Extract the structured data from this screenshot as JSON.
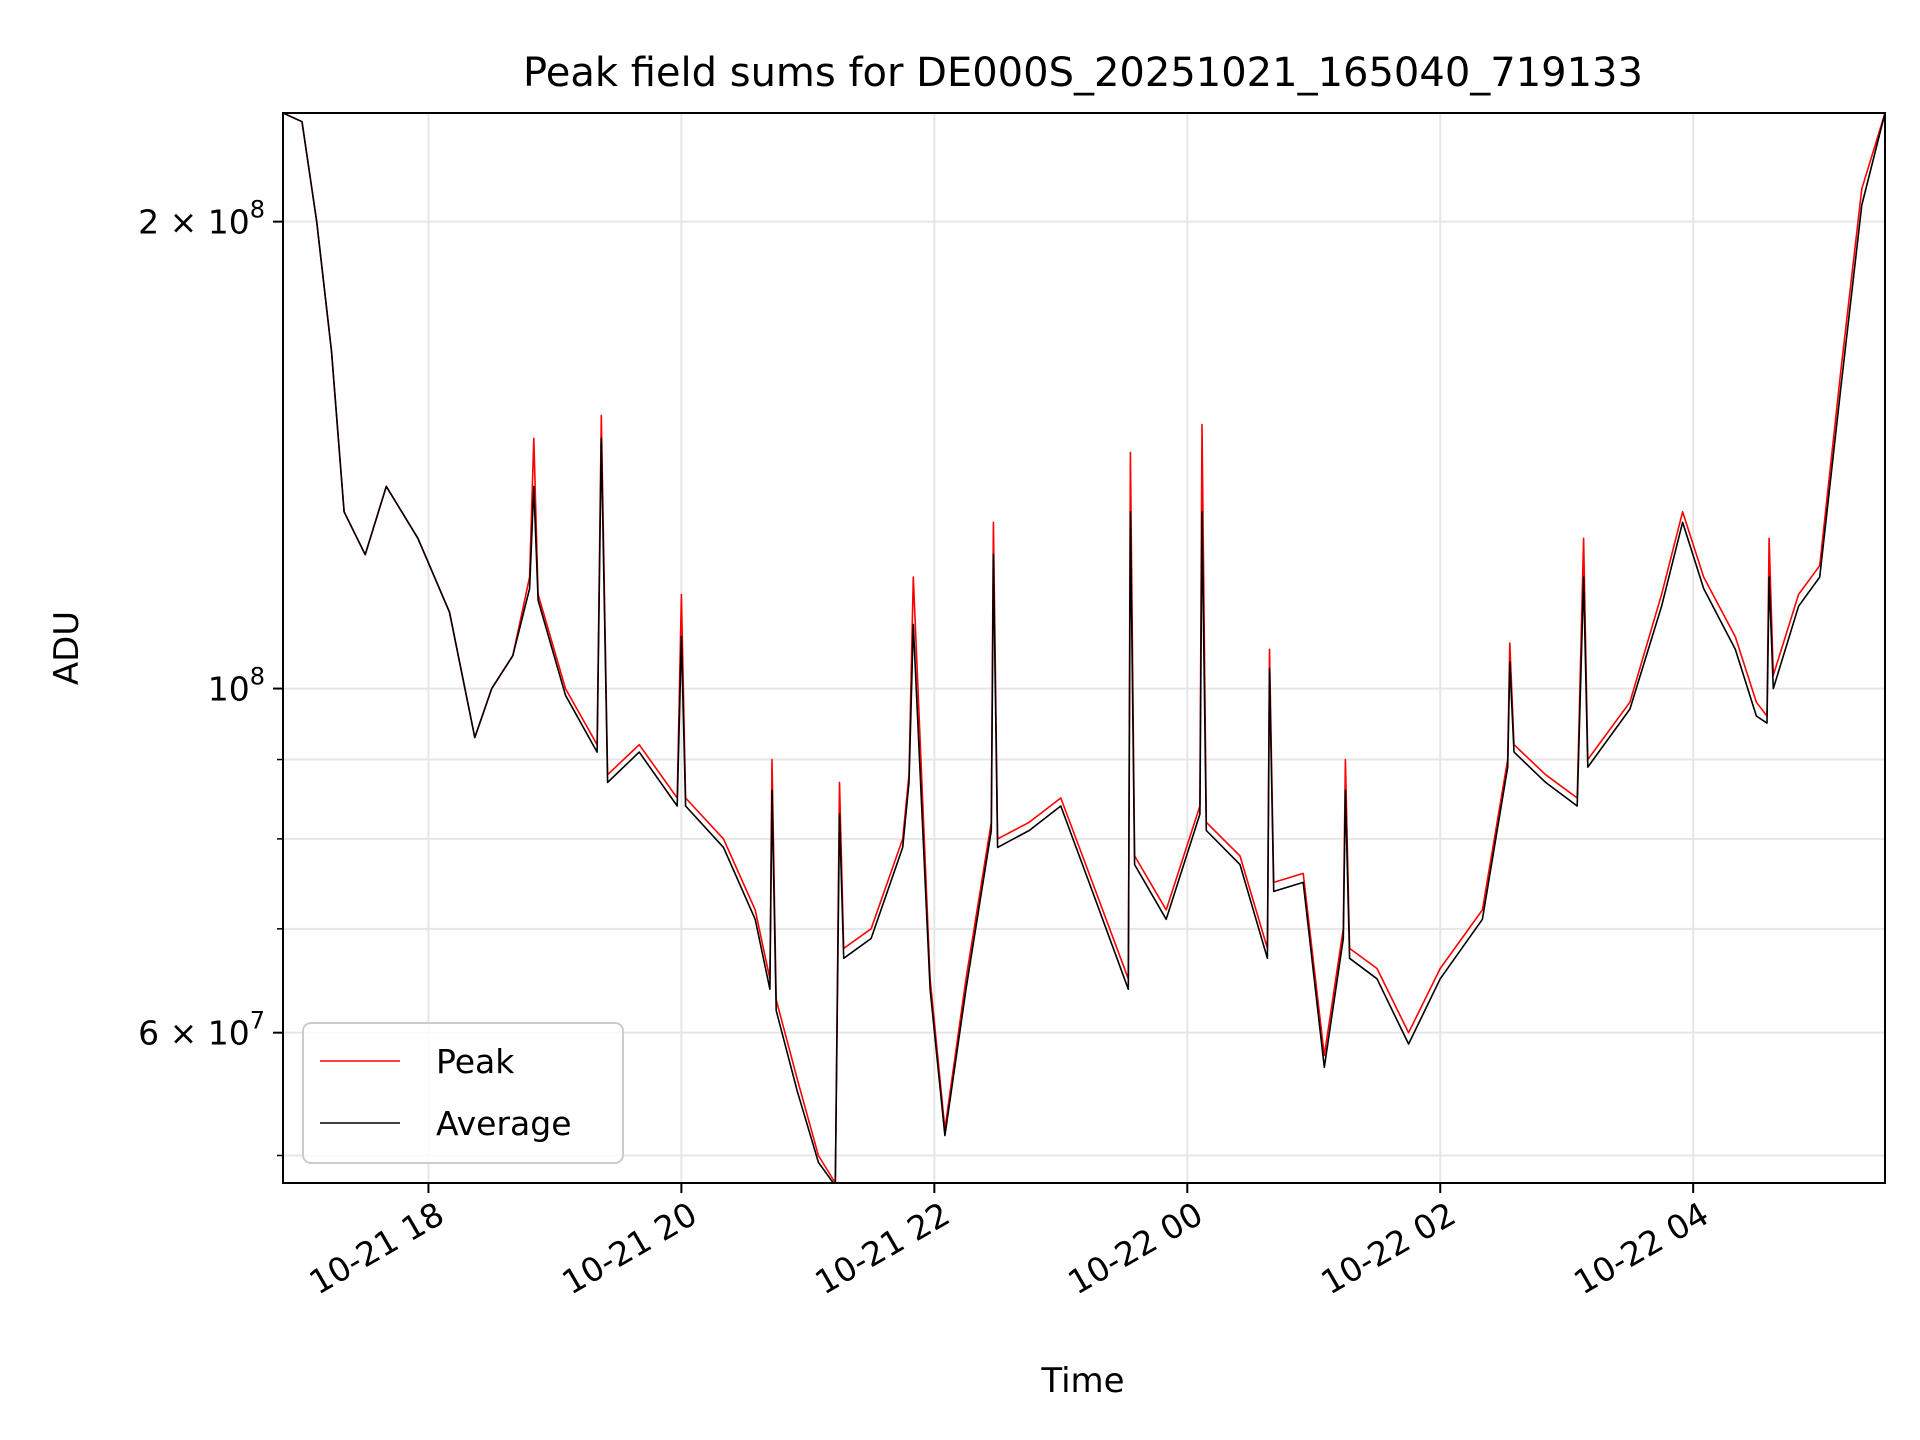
{
  "chart_data": {
    "type": "line",
    "title": "Peak field sums for DE000S_20251021_165040_719133",
    "xlabel": "Time",
    "ylabel": "ADU",
    "y_scale": "log",
    "ylim": [
      48000000,
      235000000
    ],
    "xlim": [
      "2025-10-21 16:51",
      "2025-10-22 05:31"
    ],
    "grid": true,
    "legend_position": "lower-left",
    "x_ticks": [
      {
        "t": "2025-10-21 18:00",
        "label": "10-21 18"
      },
      {
        "t": "2025-10-21 20:00",
        "label": "10-21 20"
      },
      {
        "t": "2025-10-21 22:00",
        "label": "10-21 22"
      },
      {
        "t": "2025-10-22 00:00",
        "label": "10-22 00"
      },
      {
        "t": "2025-10-22 02:00",
        "label": "10-22 02"
      },
      {
        "t": "2025-10-22 04:00",
        "label": "10-22 04"
      }
    ],
    "y_major_ticks": [
      {
        "value": 60000000,
        "mantissa": "6",
        "exponent": "7"
      },
      {
        "value": 100000000,
        "mantissa": "",
        "exponent": "8"
      },
      {
        "value": 200000000,
        "mantissa": "2",
        "exponent": "8"
      }
    ],
    "y_minor_ticks": [
      50000000,
      70000000,
      80000000,
      90000000
    ],
    "series": [
      {
        "name": "Peak",
        "color": "#ff0000",
        "x": [
          "2025-10-21 16:51",
          "2025-10-21 17:00",
          "2025-10-21 17:07",
          "2025-10-21 17:14",
          "2025-10-21 17:20",
          "2025-10-21 17:30",
          "2025-10-21 17:40",
          "2025-10-21 17:55",
          "2025-10-21 18:10",
          "2025-10-21 18:22",
          "2025-10-21 18:30",
          "2025-10-21 18:40",
          "2025-10-21 18:48",
          "2025-10-21 18:50",
          "2025-10-21 18:52",
          "2025-10-21 19:05",
          "2025-10-21 19:20",
          "2025-10-21 19:22",
          "2025-10-21 19:25",
          "2025-10-21 19:40",
          "2025-10-21 19:58",
          "2025-10-21 20:00",
          "2025-10-21 20:02",
          "2025-10-21 20:20",
          "2025-10-21 20:35",
          "2025-10-21 20:42",
          "2025-10-21 20:43",
          "2025-10-21 20:45",
          "2025-10-21 20:55",
          "2025-10-21 21:05",
          "2025-10-21 21:13",
          "2025-10-21 21:15",
          "2025-10-21 21:17",
          "2025-10-21 21:30",
          "2025-10-21 21:45",
          "2025-10-21 21:48",
          "2025-10-21 21:50",
          "2025-10-21 21:58",
          "2025-10-21 22:05",
          "2025-10-21 22:15",
          "2025-10-21 22:27",
          "2025-10-21 22:28",
          "2025-10-21 22:30",
          "2025-10-21 22:45",
          "2025-10-21 23:00",
          "2025-10-21 23:15",
          "2025-10-21 23:32",
          "2025-10-21 23:33",
          "2025-10-21 23:35",
          "2025-10-21 23:50",
          "2025-10-22 00:06",
          "2025-10-22 00:07",
          "2025-10-22 00:09",
          "2025-10-22 00:25",
          "2025-10-22 00:38",
          "2025-10-22 00:39",
          "2025-10-22 00:41",
          "2025-10-22 00:55",
          "2025-10-22 01:05",
          "2025-10-22 01:14",
          "2025-10-22 01:15",
          "2025-10-22 01:17",
          "2025-10-22 01:30",
          "2025-10-22 01:45",
          "2025-10-22 02:00",
          "2025-10-22 02:20",
          "2025-10-22 02:32",
          "2025-10-22 02:33",
          "2025-10-22 02:35",
          "2025-10-22 02:50",
          "2025-10-22 03:05",
          "2025-10-22 03:08",
          "2025-10-22 03:10",
          "2025-10-22 03:30",
          "2025-10-22 03:45",
          "2025-10-22 03:55",
          "2025-10-22 04:05",
          "2025-10-22 04:20",
          "2025-10-22 04:30",
          "2025-10-22 04:35",
          "2025-10-22 04:36",
          "2025-10-22 04:38",
          "2025-10-22 04:50",
          "2025-10-22 05:00",
          "2025-10-22 05:10",
          "2025-10-22 05:20",
          "2025-10-22 05:31"
        ],
        "values": [
          235000000,
          232000000,
          200000000,
          165000000,
          130000000,
          122000000,
          135000000,
          125000000,
          112000000,
          93000000,
          100000000,
          105000000,
          118000000,
          145000000,
          115000000,
          100000000,
          92000000,
          150000000,
          88000000,
          92000000,
          85000000,
          115000000,
          85000000,
          80000000,
          72000000,
          65000000,
          90000000,
          63000000,
          56000000,
          50000000,
          48000000,
          87000000,
          68000000,
          70000000,
          80000000,
          88000000,
          118000000,
          65000000,
          52000000,
          65000000,
          82000000,
          128000000,
          80000000,
          82000000,
          85000000,
          75000000,
          65000000,
          142000000,
          78000000,
          72000000,
          84000000,
          148000000,
          82000000,
          78000000,
          68000000,
          106000000,
          75000000,
          76000000,
          58000000,
          70000000,
          90000000,
          68000000,
          66000000,
          60000000,
          66000000,
          72000000,
          90000000,
          107000000,
          92000000,
          88000000,
          85000000,
          125000000,
          90000000,
          98000000,
          115000000,
          130000000,
          118000000,
          108000000,
          98000000,
          96000000,
          125000000,
          102000000,
          115000000,
          120000000,
          160000000,
          210000000,
          235000000
        ]
      },
      {
        "name": "Average",
        "color": "#000000",
        "x": [
          "2025-10-21 16:51",
          "2025-10-21 17:00",
          "2025-10-21 17:07",
          "2025-10-21 17:14",
          "2025-10-21 17:20",
          "2025-10-21 17:30",
          "2025-10-21 17:40",
          "2025-10-21 17:55",
          "2025-10-21 18:10",
          "2025-10-21 18:22",
          "2025-10-21 18:30",
          "2025-10-21 18:40",
          "2025-10-21 18:48",
          "2025-10-21 18:50",
          "2025-10-21 18:52",
          "2025-10-21 19:05",
          "2025-10-21 19:20",
          "2025-10-21 19:22",
          "2025-10-21 19:25",
          "2025-10-21 19:40",
          "2025-10-21 19:58",
          "2025-10-21 20:00",
          "2025-10-21 20:02",
          "2025-10-21 20:20",
          "2025-10-21 20:35",
          "2025-10-21 20:42",
          "2025-10-21 20:43",
          "2025-10-21 20:45",
          "2025-10-21 20:55",
          "2025-10-21 21:05",
          "2025-10-21 21:13",
          "2025-10-21 21:15",
          "2025-10-21 21:17",
          "2025-10-21 21:30",
          "2025-10-21 21:45",
          "2025-10-21 21:48",
          "2025-10-21 21:50",
          "2025-10-21 21:58",
          "2025-10-21 22:05",
          "2025-10-21 22:15",
          "2025-10-21 22:27",
          "2025-10-21 22:28",
          "2025-10-21 22:30",
          "2025-10-21 22:45",
          "2025-10-21 23:00",
          "2025-10-21 23:15",
          "2025-10-21 23:32",
          "2025-10-21 23:33",
          "2025-10-21 23:35",
          "2025-10-21 23:50",
          "2025-10-22 00:06",
          "2025-10-22 00:07",
          "2025-10-22 00:09",
          "2025-10-22 00:25",
          "2025-10-22 00:38",
          "2025-10-22 00:39",
          "2025-10-22 00:41",
          "2025-10-22 00:55",
          "2025-10-22 01:05",
          "2025-10-22 01:14",
          "2025-10-22 01:15",
          "2025-10-22 01:17",
          "2025-10-22 01:30",
          "2025-10-22 01:45",
          "2025-10-22 02:00",
          "2025-10-22 02:20",
          "2025-10-22 02:32",
          "2025-10-22 02:33",
          "2025-10-22 02:35",
          "2025-10-22 02:50",
          "2025-10-22 03:05",
          "2025-10-22 03:08",
          "2025-10-22 03:10",
          "2025-10-22 03:30",
          "2025-10-22 03:45",
          "2025-10-22 03:55",
          "2025-10-22 04:05",
          "2025-10-22 04:20",
          "2025-10-22 04:30",
          "2025-10-22 04:35",
          "2025-10-22 04:36",
          "2025-10-22 04:38",
          "2025-10-22 04:50",
          "2025-10-22 05:00",
          "2025-10-22 05:10",
          "2025-10-22 05:20",
          "2025-10-22 05:31"
        ],
        "values": [
          235000000,
          232000000,
          200000000,
          165000000,
          130000000,
          122000000,
          135000000,
          125000000,
          112000000,
          93000000,
          100000000,
          105000000,
          116000000,
          135000000,
          114000000,
          99000000,
          91000000,
          145000000,
          87000000,
          91000000,
          84000000,
          108000000,
          84000000,
          79000000,
          71000000,
          64000000,
          86000000,
          62000000,
          55000000,
          49500000,
          47800000,
          83000000,
          67000000,
          69000000,
          79000000,
          87000000,
          110000000,
          64000000,
          51500000,
          64000000,
          81000000,
          122000000,
          79000000,
          81000000,
          84000000,
          74000000,
          64000000,
          130000000,
          77000000,
          71000000,
          83000000,
          130000000,
          81000000,
          77000000,
          67000000,
          103000000,
          74000000,
          75000000,
          57000000,
          69000000,
          86000000,
          67000000,
          65000000,
          59000000,
          65000000,
          71000000,
          89000000,
          104000000,
          91000000,
          87000000,
          84000000,
          118000000,
          89000000,
          97000000,
          113000000,
          128000000,
          116000000,
          106000000,
          96000000,
          95000000,
          118000000,
          100000000,
          113000000,
          118000000,
          156000000,
          205000000,
          235000000
        ]
      }
    ]
  }
}
